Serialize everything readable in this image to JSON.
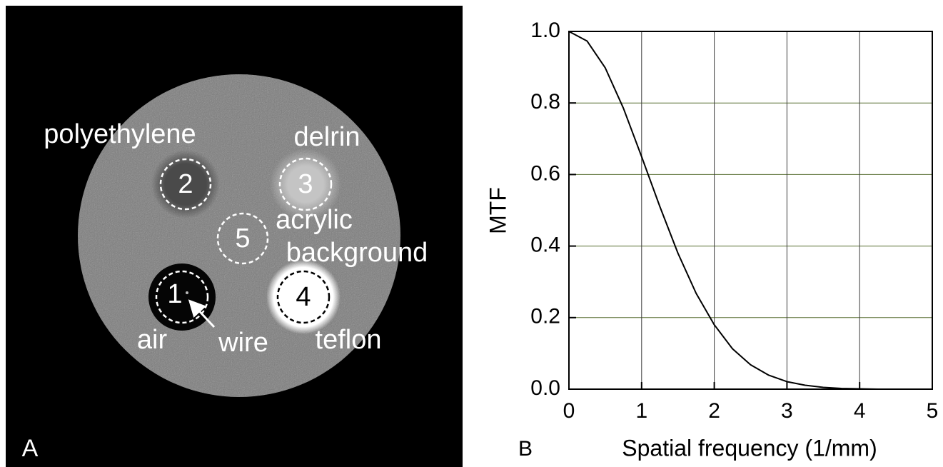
{
  "panel_a": {
    "panel_label": "A",
    "labels": {
      "polyethylene": "polyethylene",
      "delrin": "delrin",
      "acrylic": "acrylic",
      "background": "background",
      "air": "air",
      "wire": "wire",
      "teflon": "teflon"
    },
    "inserts": [
      "1",
      "2",
      "3",
      "4",
      "5"
    ]
  },
  "chart_data": {
    "type": "line",
    "panel_label": "B",
    "x_label": "Spatial frequency (1/mm)",
    "y_label": "MTF",
    "x": [
      0,
      0.25,
      0.5,
      0.75,
      1,
      1.25,
      1.5,
      1.75,
      2,
      2.25,
      2.5,
      2.75,
      3,
      3.25,
      3.5,
      3.75,
      4,
      4.25,
      4.5
    ],
    "values": [
      1.0,
      0.973,
      0.898,
      0.785,
      0.65,
      0.511,
      0.38,
      0.268,
      0.18,
      0.113,
      0.068,
      0.039,
      0.021,
      0.011,
      0.005,
      0.002,
      0.001,
      0.0,
      0.0
    ],
    "color": "#000000",
    "xlim": [
      0,
      5
    ],
    "ylim": [
      0,
      1
    ],
    "xticks": [
      0,
      1,
      2,
      3,
      4,
      5
    ],
    "yticks": [
      {
        "value": 0,
        "label": "0.0"
      },
      {
        "value": 0.2,
        "label": "0.2"
      },
      {
        "value": 0.4,
        "label": "0.4"
      },
      {
        "value": 0.6,
        "label": "0.6"
      },
      {
        "value": 0.8,
        "label": "0.8"
      },
      {
        "value": 1,
        "label": "1.0"
      }
    ],
    "grid": true
  }
}
